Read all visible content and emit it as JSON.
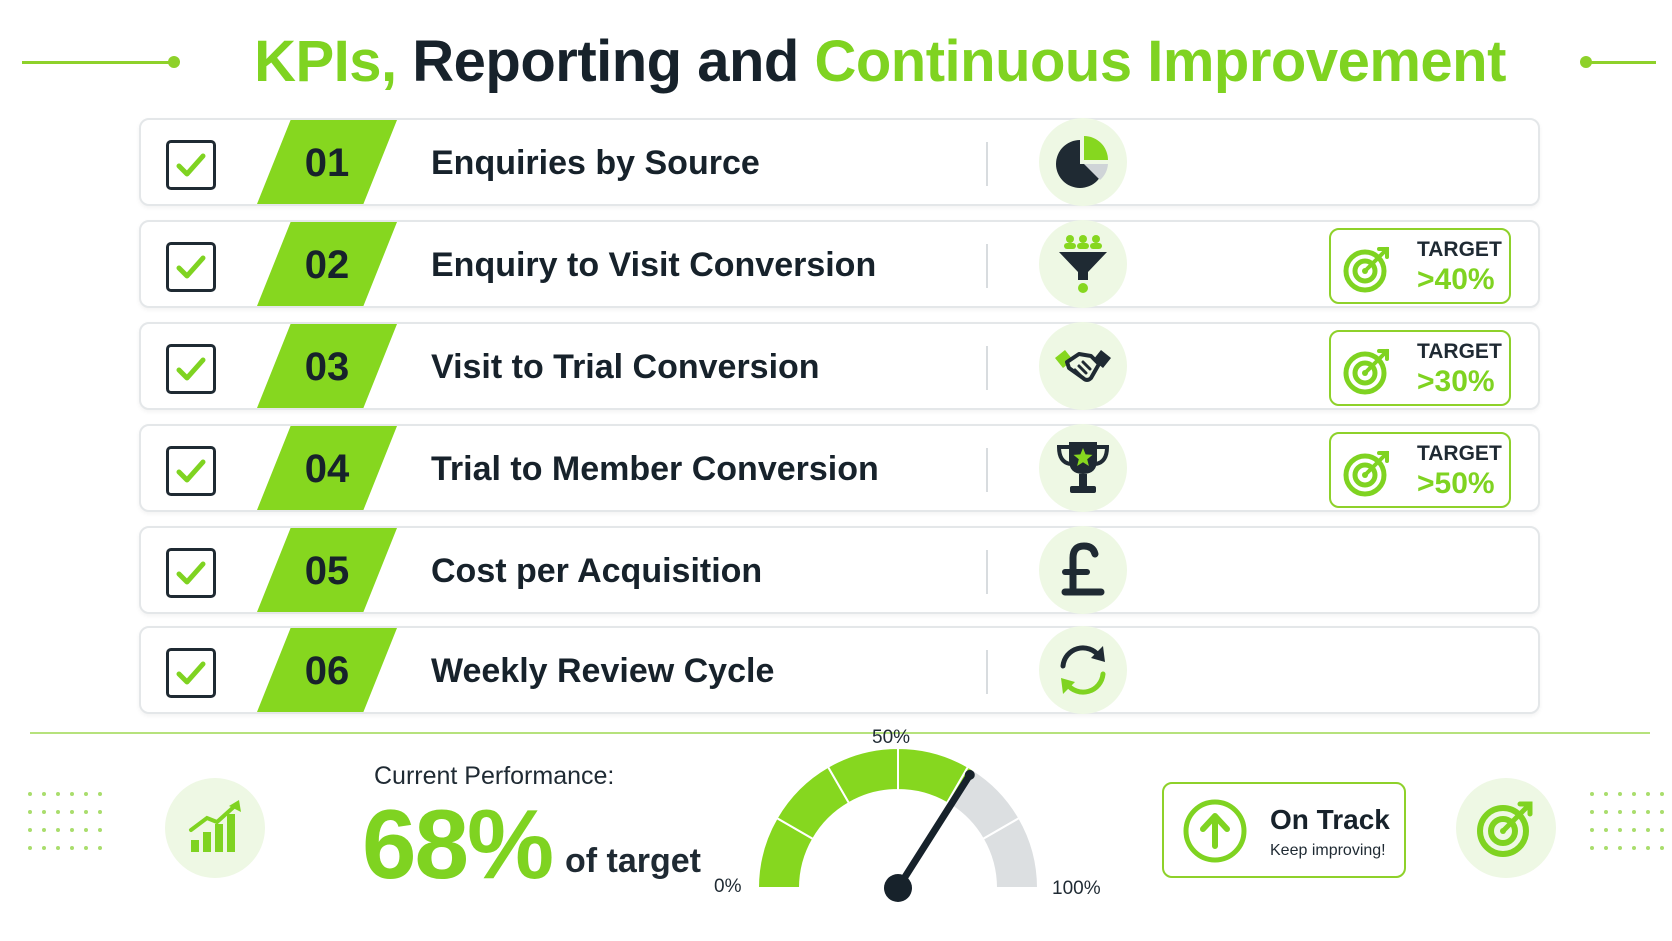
{
  "title": {
    "part1": "KPIs,",
    "part2": "Reporting and",
    "part3": "Continuous Improvement"
  },
  "kpis": [
    {
      "number": "01",
      "label": "Enquiries by Source",
      "icon": "pie-chart-icon",
      "target": null
    },
    {
      "number": "02",
      "label": "Enquiry to Visit Conversion",
      "icon": "funnel-icon",
      "target": {
        "label": "TARGET",
        "value": ">40%"
      }
    },
    {
      "number": "03",
      "label": "Visit to Trial Conversion",
      "icon": "handshake-icon",
      "target": {
        "label": "TARGET",
        "value": ">30%"
      }
    },
    {
      "number": "04",
      "label": "Trial to Member Conversion",
      "icon": "trophy-icon",
      "target": {
        "label": "TARGET",
        "value": ">50%"
      }
    },
    {
      "number": "05",
      "label": "Cost per Acquisition",
      "icon": "pound-icon",
      "target": null
    },
    {
      "number": "06",
      "label": "Weekly Review Cycle",
      "icon": "refresh-icon",
      "target": null
    }
  ],
  "performance": {
    "label": "Current Performance:",
    "value": "68%",
    "suffix": "of target",
    "fraction": 0.68
  },
  "gauge": {
    "min_label": "0%",
    "mid_label": "50%",
    "max_label": "100%"
  },
  "status": {
    "title": "On Track",
    "subtitle": "Keep improving!"
  },
  "colors": {
    "accent": "#7fd321",
    "dark": "#17222b",
    "light": "#eef8e4"
  }
}
